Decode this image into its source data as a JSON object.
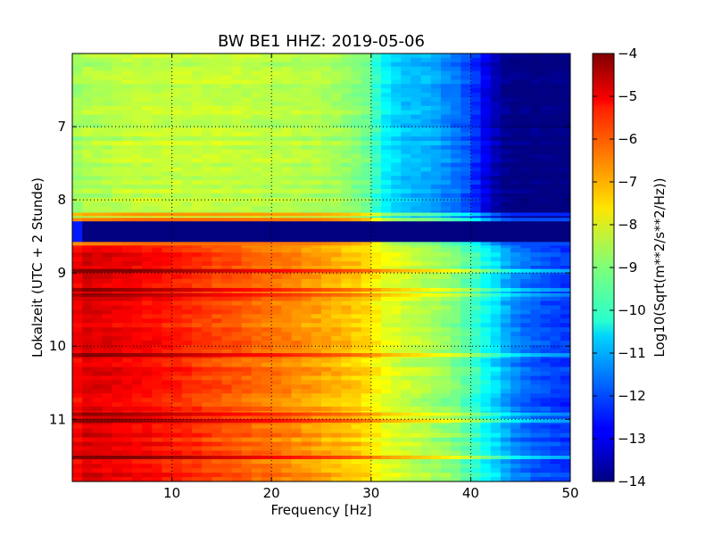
{
  "chart_data": {
    "type": "heatmap",
    "title": "BW BE1 HHZ: 2019-05-06",
    "xlabel": "Frequency [Hz]",
    "ylabel": "Lokalzeit (UTC + 2 Stunde)",
    "colorbar_label": "Log10(Sqrt(m**2/s**2/Hz))",
    "xlim": [
      0,
      50
    ],
    "ylim": [
      11.85,
      6.0
    ],
    "x_ticks": [
      10,
      20,
      30,
      40,
      50
    ],
    "x_tick_labels": [
      "10",
      "20",
      "30",
      "40",
      "50"
    ],
    "y_ticks": [
      7,
      8,
      9,
      10,
      11
    ],
    "y_tick_labels": [
      "7",
      "8",
      "9",
      "10",
      "11"
    ],
    "grid": true,
    "colormap": "jet",
    "color_range": [
      -14,
      -4
    ],
    "colorbar_ticks": [
      -4,
      -5,
      -6,
      -7,
      -8,
      -9,
      -10,
      -11,
      -12,
      -13,
      -14
    ],
    "colorbar_tick_labels": [
      "−4",
      "−5",
      "−6",
      "−7",
      "−8",
      "−9",
      "−10",
      "−11",
      "−12",
      "−13",
      "−14"
    ],
    "time_segments": [
      {
        "start": 6.0,
        "end": 8.27,
        "level": "quiet"
      },
      {
        "start": 8.27,
        "end": 8.6,
        "level": "no-data"
      },
      {
        "start": 8.6,
        "end": 11.85,
        "level": "active"
      }
    ],
    "quiet_profile": {
      "frequency": [
        0,
        1,
        3,
        6,
        10,
        15,
        20,
        25,
        28,
        30,
        31,
        33,
        36,
        38,
        40,
        41,
        42,
        43,
        44,
        50
      ],
      "value": [
        -8.8,
        -8.5,
        -8.5,
        -8.3,
        -8.3,
        -8.3,
        -8.4,
        -8.5,
        -8.8,
        -9.2,
        -10.2,
        -10.8,
        -11.0,
        -11.5,
        -12.0,
        -12.6,
        -13.2,
        -13.7,
        -14.0,
        -14.0
      ]
    },
    "active_profile": {
      "frequency": [
        0,
        1,
        3,
        6,
        10,
        15,
        20,
        25,
        28,
        30,
        31,
        33,
        36,
        38,
        40,
        41,
        42,
        43,
        44,
        46,
        48,
        50
      ],
      "value": [
        -5.5,
        -4.9,
        -5.0,
        -5.2,
        -5.5,
        -6.0,
        -6.4,
        -6.9,
        -7.2,
        -7.5,
        -7.9,
        -8.2,
        -8.6,
        -8.9,
        -9.5,
        -10.0,
        -10.4,
        -10.8,
        -11.3,
        -11.8,
        -12.1,
        -12.3
      ]
    },
    "bright_lines": [
      {
        "time": 8.2,
        "offset": 1.6
      },
      {
        "time": 8.27,
        "offset": 2.0
      },
      {
        "time": 8.6,
        "offset": 2.0
      },
      {
        "time": 8.97,
        "offset": 1.2
      },
      {
        "time": 9.23,
        "offset": 0.9
      },
      {
        "time": 9.3,
        "offset": 0.8
      },
      {
        "time": 10.12,
        "offset": 1.0
      },
      {
        "time": 10.93,
        "offset": 0.8
      },
      {
        "time": 11.02,
        "offset": 1.1
      },
      {
        "time": 11.52,
        "offset": 1.2
      }
    ]
  }
}
